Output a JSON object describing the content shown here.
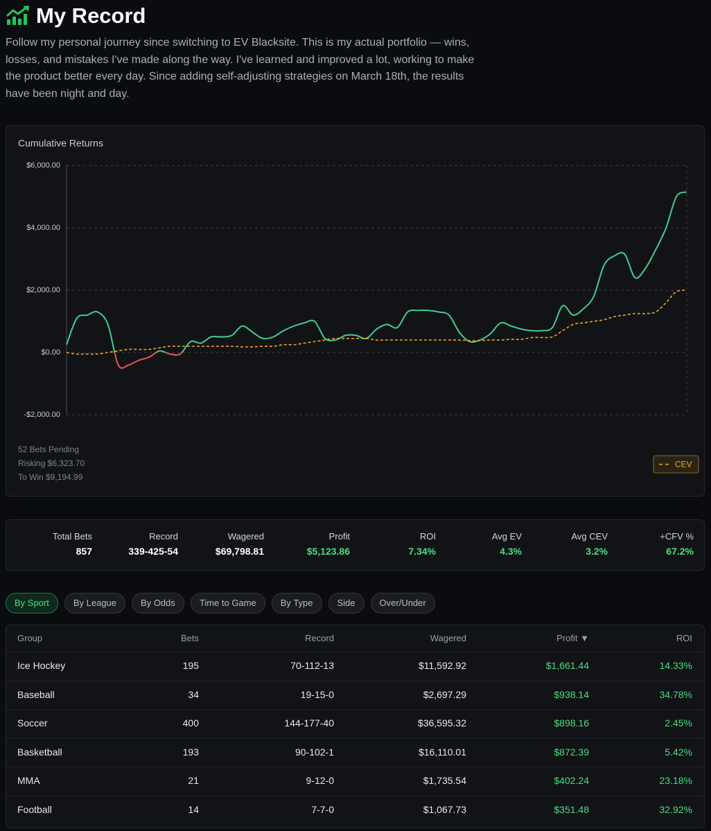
{
  "header": {
    "title": "My Record",
    "description": "Follow my personal journey since switching to EV Blacksite. This is my actual portfolio — wins, losses, and mistakes I've made along the way. I've learned and improved a lot, working to make the product better every day. Since adding self-adjusting strategies on March 18th, the results have been night and day."
  },
  "chart_data": {
    "type": "line",
    "title": "Cumulative Returns",
    "series": [
      {
        "color": "#3ecf8e",
        "negative_color": "#f05252",
        "values": [
          250,
          1100,
          1200,
          1300,
          900,
          -400,
          -400,
          -250,
          -150,
          50,
          -50,
          -50,
          350,
          300,
          500,
          500,
          550,
          850,
          650,
          450,
          500,
          700,
          850,
          950,
          1000,
          450,
          400,
          550,
          550,
          450,
          750,
          900,
          800,
          1300,
          1350,
          1350,
          1300,
          1200,
          650,
          350,
          400,
          600,
          950,
          850,
          750,
          700,
          700,
          800,
          1500,
          1200,
          1400,
          1800,
          2800,
          3100,
          3150,
          2400,
          2700,
          3300,
          4000,
          5000,
          5150
        ]
      },
      {
        "name": "CEV",
        "color": "#f5a623",
        "dashed": true,
        "values": [
          0,
          -50,
          -50,
          -50,
          0,
          50,
          100,
          100,
          100,
          150,
          200,
          200,
          200,
          200,
          200,
          200,
          200,
          180,
          180,
          200,
          200,
          250,
          250,
          300,
          350,
          400,
          450,
          450,
          450,
          450,
          400,
          400,
          400,
          400,
          400,
          400,
          400,
          400,
          400,
          380,
          380,
          400,
          400,
          420,
          420,
          480,
          480,
          500,
          700,
          900,
          950,
          1000,
          1050,
          1150,
          1200,
          1250,
          1250,
          1300,
          1600,
          1950,
          2000
        ]
      }
    ],
    "ylim": [
      -2000,
      6000
    ],
    "yticks": [
      {
        "value": -2000,
        "label": "-$2,000.00"
      },
      {
        "value": 0,
        "label": "$0.00"
      },
      {
        "value": 2000,
        "label": "$2,000.00"
      },
      {
        "value": 4000,
        "label": "$4,000.00"
      },
      {
        "value": 6000,
        "label": "$6,000.00"
      }
    ],
    "grid": true,
    "legend": "bottom-right",
    "pending": [
      "52 Bets Pending",
      "Risking $6,323.70",
      "To Win $9,194.99"
    ]
  },
  "stats": [
    {
      "label": "Total Bets",
      "value": "857"
    },
    {
      "label": "Record",
      "value": "339-425-54"
    },
    {
      "label": "Wagered",
      "value": "$69,798.81"
    },
    {
      "label": "Profit",
      "value": "$5,123.86"
    },
    {
      "label": "ROI",
      "value": "7.34%"
    },
    {
      "label": "Avg EV",
      "value": "4.3%"
    },
    {
      "label": "Avg CEV",
      "value": "3.2%"
    },
    {
      "label": "+CFV %",
      "value": "67.2%"
    }
  ],
  "tabs": {
    "items": [
      "By Sport",
      "By League",
      "By Odds",
      "Time to Game",
      "By Type",
      "Side",
      "Over/Under"
    ],
    "active": 0
  },
  "table": {
    "columns": [
      "Group",
      "Bets",
      "Record",
      "Wagered",
      "Profit ▼",
      "ROI"
    ],
    "rows": [
      [
        "Ice Hockey",
        "195",
        "70-112-13",
        "$11,592.92",
        "$1,661.44",
        "14.33%"
      ],
      [
        "Baseball",
        "34",
        "19-15-0",
        "$2,697.29",
        "$938.14",
        "34.78%"
      ],
      [
        "Soccer",
        "400",
        "144-177-40",
        "$36,595.32",
        "$898.16",
        "2.45%"
      ],
      [
        "Basketball",
        "193",
        "90-102-1",
        "$16,110.01",
        "$872.39",
        "5.42%"
      ],
      [
        "MMA",
        "21",
        "9-12-0",
        "$1,735.54",
        "$402.24",
        "23.18%"
      ],
      [
        "Football",
        "14",
        "7-7-0",
        "$1,067.73",
        "$351.48",
        "32.92%"
      ]
    ]
  }
}
